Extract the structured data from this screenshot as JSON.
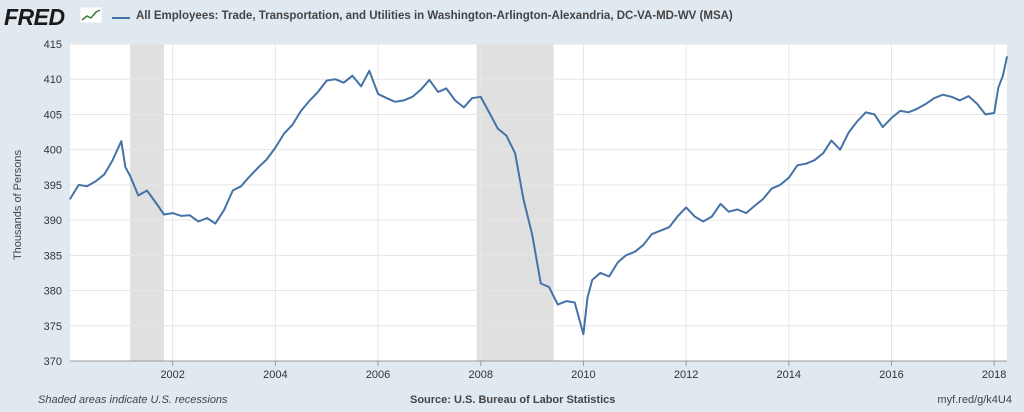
{
  "header": {
    "logo_text": "FRED",
    "title": "All Employees: Trade, Transportation, and Utilities in Washington-Arlington-Alexandria, DC-VA-MD-WV (MSA)"
  },
  "footer": {
    "note": "Shaded areas indicate U.S. recessions",
    "source": "Source: U.S. Bureau of Labor Statistics",
    "link": "myf.red/g/k4U4"
  },
  "colors": {
    "line": "#4572a7",
    "background": "#e1e9f0",
    "plot": "#ffffff",
    "recession": "#e0e0e0"
  },
  "chart_data": {
    "type": "line",
    "title": "All Employees: Trade, Transportation, and Utilities in Washington-Arlington-Alexandria, DC-VA-MD-WV (MSA)",
    "xlabel": "",
    "ylabel": "Thousands of Persons",
    "xlim": [
      2000.0,
      2018.25
    ],
    "ylim": [
      370,
      415
    ],
    "yticks": [
      370,
      375,
      380,
      385,
      390,
      395,
      400,
      405,
      410,
      415
    ],
    "xticks": [
      "2002",
      "2004",
      "2006",
      "2008",
      "2010",
      "2012",
      "2014",
      "2016",
      "2018"
    ],
    "grid": true,
    "recessions": [
      [
        2001.17,
        2001.83
      ],
      [
        2007.92,
        2009.42
      ]
    ],
    "x": [
      2000.0,
      2000.17,
      2000.33,
      2000.5,
      2000.67,
      2000.83,
      2001.0,
      2001.08,
      2001.17,
      2001.33,
      2001.5,
      2001.67,
      2001.83,
      2002.0,
      2002.17,
      2002.33,
      2002.5,
      2002.67,
      2002.83,
      2003.0,
      2003.17,
      2003.33,
      2003.5,
      2003.67,
      2003.83,
      2004.0,
      2004.17,
      2004.33,
      2004.5,
      2004.67,
      2004.83,
      2005.0,
      2005.17,
      2005.33,
      2005.5,
      2005.67,
      2005.83,
      2006.0,
      2006.17,
      2006.33,
      2006.5,
      2006.67,
      2006.83,
      2007.0,
      2007.17,
      2007.33,
      2007.5,
      2007.67,
      2007.83,
      2008.0,
      2008.17,
      2008.33,
      2008.5,
      2008.67,
      2008.83,
      2009.0,
      2009.17,
      2009.33,
      2009.5,
      2009.67,
      2009.83,
      2010.0,
      2010.08,
      2010.17,
      2010.33,
      2010.5,
      2010.67,
      2010.83,
      2011.0,
      2011.17,
      2011.33,
      2011.5,
      2011.67,
      2011.83,
      2012.0,
      2012.17,
      2012.33,
      2012.5,
      2012.67,
      2012.83,
      2013.0,
      2013.17,
      2013.33,
      2013.5,
      2013.67,
      2013.83,
      2014.0,
      2014.17,
      2014.33,
      2014.5,
      2014.67,
      2014.83,
      2015.0,
      2015.17,
      2015.33,
      2015.5,
      2015.67,
      2015.83,
      2016.0,
      2016.17,
      2016.33,
      2016.5,
      2016.67,
      2016.83,
      2017.0,
      2017.17,
      2017.33,
      2017.5,
      2017.67,
      2017.83,
      2018.0,
      2018.08,
      2018.17,
      2018.25
    ],
    "values": [
      393.0,
      395.0,
      394.8,
      395.5,
      396.5,
      398.5,
      401.2,
      397.5,
      396.3,
      393.5,
      394.2,
      392.5,
      390.8,
      391.0,
      390.6,
      390.7,
      389.8,
      390.3,
      389.5,
      391.4,
      394.2,
      394.8,
      396.2,
      397.5,
      398.6,
      400.3,
      402.3,
      403.5,
      405.5,
      407.0,
      408.2,
      409.8,
      410.0,
      409.5,
      410.5,
      409.0,
      411.2,
      407.9,
      407.3,
      406.8,
      407.0,
      407.5,
      408.5,
      409.9,
      408.2,
      408.7,
      407.0,
      406.0,
      407.3,
      407.5,
      405.2,
      403.0,
      402.0,
      399.5,
      393.0,
      388.0,
      381.0,
      380.5,
      378.0,
      378.5,
      378.3,
      373.8,
      379.0,
      381.5,
      382.5,
      382.0,
      384.0,
      385.0,
      385.5,
      386.5,
      388.0,
      388.5,
      389.0,
      390.5,
      391.8,
      390.5,
      389.8,
      390.5,
      392.3,
      391.2,
      391.5,
      391.0,
      392.0,
      393.0,
      394.5,
      395.0,
      396.0,
      397.8,
      398.0,
      398.5,
      399.5,
      401.3,
      400.0,
      402.5,
      404.0,
      405.3,
      405.0,
      403.2,
      404.5,
      405.5,
      405.3,
      405.8,
      406.5,
      407.3,
      407.8,
      407.5,
      407.0,
      407.6,
      406.5,
      405.0,
      405.2,
      408.8,
      410.5,
      413.2
    ]
  }
}
